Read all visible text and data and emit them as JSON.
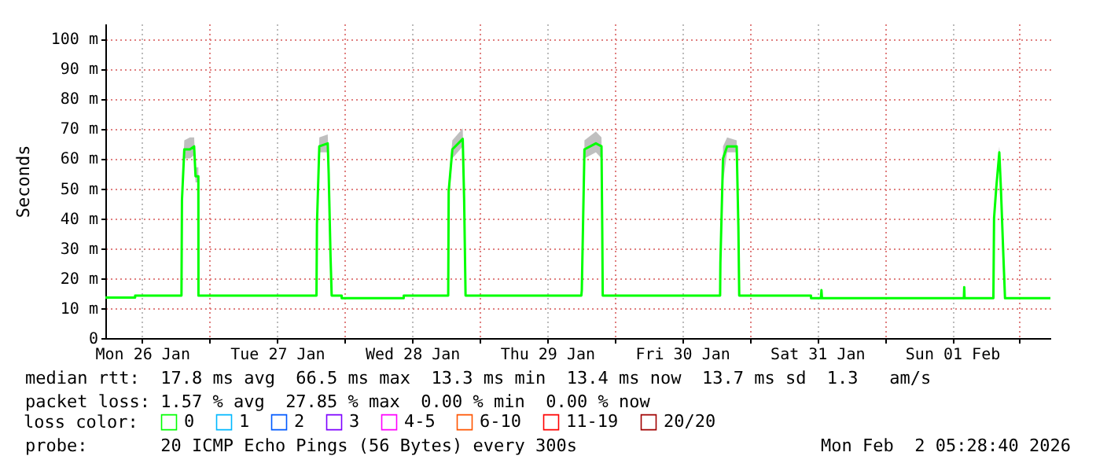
{
  "chart_data": {
    "type": "line",
    "ylabel": "Seconds",
    "legend_title": "loss color:",
    "legend": "bottom",
    "annotations": [
      "median rtt:  17.8 ms avg  66.5 ms max  13.3 ms min  13.4 ms now  13.7 ms sd  1.3   am/s",
      "packet loss: 1.57 % avg  27.85 % max  0.00 % min  0.00 % now",
      "probe:       20 ICMP Echo Pings (56 Bytes) every 300s",
      "Mon Feb  2 05:28:40 2026"
    ],
    "x": [
      "2026-01-26T05:28",
      "2026-01-26T10:45",
      "2026-01-26T10:46",
      "2026-01-26T19:00",
      "2026-01-26T19:05",
      "2026-01-26T19:30",
      "2026-01-26T20:30",
      "2026-01-26T21:15",
      "2026-01-26T21:30",
      "2026-01-26T22:00",
      "2026-01-26T22:01",
      "2026-01-27T19:00",
      "2026-01-27T19:05",
      "2026-01-27T19:30",
      "2026-01-27T21:00",
      "2026-01-27T21:10",
      "2026-01-27T21:30",
      "2026-01-27T21:42",
      "2026-01-27T23:28",
      "2026-01-27T23:29",
      "2026-01-28T10:30",
      "2026-01-28T10:31",
      "2026-01-28T18:25",
      "2026-01-28T18:30",
      "2026-01-28T19:09",
      "2026-01-28T21:00",
      "2026-01-28T21:15",
      "2026-01-28T21:30",
      "2026-01-29T18:05",
      "2026-01-29T18:10",
      "2026-01-29T18:38",
      "2026-01-29T20:40",
      "2026-01-29T21:40",
      "2026-01-29T21:48",
      "2026-01-29T21:53",
      "2026-01-30T18:45",
      "2026-01-30T18:48",
      "2026-01-30T19:16",
      "2026-01-30T20:00",
      "2026-01-30T21:42",
      "2026-01-30T22:00",
      "2026-01-30T22:09",
      "2026-01-31T10:54",
      "2026-01-31T10:55",
      "2026-01-31T12:40",
      "2026-01-31T12:46",
      "2026-01-31T12:52",
      "2026-02-01T14:05",
      "2026-02-01T14:09",
      "2026-02-01T14:13",
      "2026-02-01T19:20",
      "2026-02-01T19:27",
      "2026-02-01T19:50",
      "2026-02-01T20:23",
      "2026-02-01T20:40",
      "2026-02-01T21:07",
      "2026-02-01T21:24",
      "2026-02-02T05:28"
    ],
    "series": [
      {
        "name": "0",
        "color": "#00ff00",
        "values": [
          13.5,
          13.5,
          14.2,
          14.2,
          46,
          63,
          63,
          64,
          54,
          54,
          14.2,
          14.2,
          38,
          64,
          65,
          55,
          27,
          14.2,
          14.2,
          13.3,
          13.3,
          14.2,
          14.2,
          49,
          63,
          66.5,
          46,
          14.2,
          14.2,
          16,
          63,
          65,
          64,
          36,
          14.2,
          14.2,
          25,
          60,
          64,
          64,
          37,
          14.2,
          14.2,
          13.3,
          13.3,
          16,
          13.3,
          13.3,
          17,
          13.3,
          13.3,
          40,
          50,
          62,
          50,
          27,
          13.3,
          13.3
        ],
        "lower": [
          null,
          null,
          null,
          null,
          44,
          60,
          60,
          61,
          52,
          52,
          null,
          null,
          35,
          62,
          62,
          50,
          24,
          null,
          null,
          null,
          null,
          null,
          null,
          45,
          60,
          64,
          44,
          null,
          null,
          null,
          60,
          62,
          60,
          33,
          null,
          null,
          null,
          52,
          62,
          62,
          35,
          null,
          null,
          null,
          null,
          null,
          null,
          null,
          null,
          null,
          null,
          38,
          48,
          58,
          47,
          20,
          null,
          null
        ],
        "upper": [
          null,
          null,
          null,
          null,
          48,
          66,
          67,
          67,
          57,
          57,
          null,
          null,
          42,
          67,
          68,
          58,
          33,
          null,
          null,
          null,
          null,
          null,
          null,
          52,
          66,
          70,
          49,
          null,
          null,
          null,
          66,
          69,
          67,
          41,
          null,
          null,
          null,
          64,
          67,
          66,
          40,
          null,
          null,
          null,
          null,
          null,
          null,
          null,
          null,
          null,
          null,
          43,
          53,
          64,
          53,
          30,
          null,
          null
        ]
      },
      {
        "name": "1",
        "color": "#00b8ff",
        "values": [
          null,
          null,
          null,
          null,
          null,
          null,
          null,
          null,
          null,
          null,
          null,
          null,
          null,
          null,
          null,
          null,
          null,
          null,
          null,
          null,
          null,
          null,
          null,
          null,
          null,
          null,
          null,
          null,
          null,
          null,
          null,
          null,
          null,
          null,
          null,
          null,
          null,
          null,
          null,
          null,
          null,
          null,
          null,
          null,
          null,
          null,
          null,
          null,
          null,
          null,
          null,
          null,
          null,
          null,
          null,
          null,
          null,
          null
        ]
      },
      {
        "name": "2",
        "color": "#0059ff",
        "values": [
          null,
          null,
          null,
          null,
          null,
          null,
          null,
          null,
          null,
          null,
          null,
          null,
          null,
          null,
          null,
          null,
          null,
          null,
          null,
          null,
          null,
          null,
          null,
          null,
          null,
          null,
          null,
          null,
          null,
          null,
          null,
          null,
          null,
          null,
          null,
          null,
          null,
          null,
          null,
          null,
          null,
          null,
          null,
          null,
          null,
          null,
          null,
          null,
          null,
          null,
          null,
          null,
          null,
          null,
          null,
          null,
          null,
          null
        ]
      },
      {
        "name": "3",
        "color": "#7e00ff",
        "values": [
          null,
          null,
          null,
          null,
          null,
          null,
          null,
          null,
          null,
          null,
          null,
          null,
          null,
          null,
          null,
          null,
          null,
          null,
          null,
          null,
          null,
          null,
          null,
          null,
          null,
          null,
          null,
          null,
          null,
          null,
          null,
          null,
          null,
          null,
          null,
          null,
          null,
          null,
          null,
          null,
          null,
          null,
          null,
          null,
          null,
          null,
          null,
          null,
          null,
          null,
          null,
          null,
          null,
          null,
          null,
          null,
          null,
          null
        ]
      },
      {
        "name": "4-5",
        "color": "#ff00ff",
        "values": [
          null,
          null,
          null,
          null,
          null,
          null,
          null,
          null,
          null,
          null,
          null,
          null,
          null,
          null,
          null,
          null,
          null,
          null,
          null,
          null,
          null,
          null,
          null,
          null,
          null,
          null,
          null,
          null,
          null,
          null,
          null,
          null,
          null,
          null,
          null,
          null,
          null,
          null,
          null,
          null,
          null,
          null,
          null,
          null,
          null,
          null,
          null,
          null,
          null,
          null,
          null,
          null,
          null,
          null,
          null,
          null,
          null,
          null
        ]
      },
      {
        "name": "6-10",
        "color": "#ff5500",
        "values": [
          null,
          null,
          null,
          null,
          null,
          null,
          null,
          null,
          null,
          null,
          null,
          null,
          null,
          null,
          null,
          null,
          null,
          null,
          null,
          null,
          null,
          null,
          null,
          null,
          null,
          null,
          null,
          null,
          null,
          null,
          null,
          null,
          null,
          null,
          null,
          null,
          null,
          null,
          null,
          null,
          null,
          null,
          null,
          null,
          null,
          null,
          null,
          null,
          null,
          null,
          null,
          null,
          null,
          null,
          null,
          null,
          null,
          null
        ]
      },
      {
        "name": "11-19",
        "color": "#ff0000",
        "values": [
          null,
          null,
          null,
          null,
          null,
          null,
          null,
          null,
          null,
          null,
          null,
          null,
          null,
          null,
          null,
          null,
          null,
          null,
          null,
          null,
          null,
          null,
          null,
          null,
          null,
          null,
          null,
          null,
          null,
          null,
          null,
          null,
          null,
          null,
          null,
          null,
          null,
          null,
          null,
          null,
          null,
          null,
          null,
          null,
          null,
          null,
          null,
          null,
          null,
          null,
          null,
          null,
          null,
          null,
          null,
          null,
          null,
          null
        ]
      },
      {
        "name": "20/20",
        "color": "#a10000",
        "values": [
          null,
          null,
          null,
          null,
          null,
          null,
          null,
          null,
          null,
          null,
          null,
          null,
          null,
          null,
          null,
          null,
          null,
          null,
          null,
          null,
          null,
          null,
          null,
          null,
          null,
          null,
          null,
          null,
          null,
          null,
          null,
          null,
          null,
          null,
          null,
          null,
          null,
          null,
          null,
          null,
          null,
          null,
          null,
          null,
          null,
          null,
          null,
          null,
          null,
          null,
          null,
          null,
          null,
          null,
          null,
          null,
          null,
          null
        ]
      }
    ],
    "xlim": [
      "2026-01-26T05:28",
      "2026-02-02T05:28"
    ],
    "xticks": [
      {
        "value": "2026-01-26T12:00",
        "label": "Mon 26 Jan"
      },
      {
        "value": "2026-01-27T00:00",
        "label": null
      },
      {
        "value": "2026-01-27T12:00",
        "label": "Tue 27 Jan"
      },
      {
        "value": "2026-01-28T00:00",
        "label": null
      },
      {
        "value": "2026-01-28T12:00",
        "label": "Wed 28 Jan"
      },
      {
        "value": "2026-01-29T00:00",
        "label": null
      },
      {
        "value": "2026-01-29T12:00",
        "label": "Thu 29 Jan"
      },
      {
        "value": "2026-01-30T00:00",
        "label": null
      },
      {
        "value": "2026-01-30T12:00",
        "label": "Fri 30 Jan"
      },
      {
        "value": "2026-01-31T00:00",
        "label": null
      },
      {
        "value": "2026-01-31T12:00",
        "label": "Sat 31 Jan"
      },
      {
        "value": "2026-02-01T00:00",
        "label": null
      },
      {
        "value": "2026-02-01T12:00",
        "label": "Sun 01 Feb"
      },
      {
        "value": "2026-02-02T00:00",
        "label": null
      }
    ],
    "ylim": [
      0,
      105
    ],
    "yticks": [
      0,
      {
        "value": 10,
        "label": "10 m"
      },
      {
        "value": 20,
        "label": "20 m"
      },
      {
        "value": 30,
        "label": "30 m"
      },
      {
        "value": 40,
        "label": "40 m"
      },
      {
        "value": 50,
        "label": "50 m"
      },
      {
        "value": 60,
        "label": "60 m"
      },
      {
        "value": 70,
        "label": "70 m"
      },
      {
        "value": 80,
        "label": "80 m"
      },
      {
        "value": 90,
        "label": "90 m"
      },
      {
        "value": 100,
        "label": "100 m"
      }
    ],
    "grid": true
  }
}
